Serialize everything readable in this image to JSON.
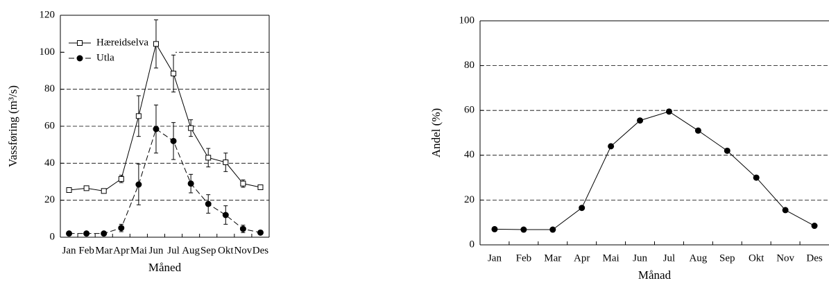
{
  "chart_data": [
    {
      "type": "line",
      "x_label": "Måned",
      "y_label": "Vassføring (m³/s)",
      "categories": [
        "Jan",
        "Feb",
        "Mar",
        "Apr",
        "Mai",
        "Jun",
        "Jul",
        "Aug",
        "Sep",
        "Okt",
        "Nov",
        "Des"
      ],
      "series": [
        {
          "name": "Hæreidselva",
          "color": "#000000",
          "marker": "square-open",
          "linestyle": "solid",
          "values": [
            25.5,
            26.5,
            25,
            31.5,
            65.5,
            104.5,
            88.5,
            59,
            43,
            40.5,
            29,
            27
          ],
          "errors": [
            0,
            0,
            0,
            2,
            11,
            13,
            10,
            4.5,
            5,
            5,
            2,
            0
          ]
        },
        {
          "name": "Utla",
          "color": "#000000",
          "marker": "circle-filled",
          "linestyle": "dashed",
          "values": [
            2,
            2,
            2,
            5,
            28.5,
            58.5,
            52,
            29,
            18,
            12,
            4.5,
            2.5
          ],
          "errors": [
            0,
            0,
            0,
            2,
            11,
            13,
            10,
            5,
            5,
            5,
            2,
            0
          ]
        }
      ],
      "ylim": [
        0,
        120
      ],
      "yticks": [
        0,
        20,
        40,
        60,
        80,
        100,
        120
      ],
      "grid": true,
      "legend": "upper left"
    },
    {
      "type": "line",
      "x_label": "Månad",
      "y_label": "Andel (%)",
      "categories": [
        "Jan",
        "Feb",
        "Mar",
        "Apr",
        "Mai",
        "Jun",
        "Jul",
        "Aug",
        "Sep",
        "Okt",
        "Nov",
        "Des"
      ],
      "series": [
        {
          "color": "#000000",
          "marker": "circle-filled",
          "linestyle": "solid",
          "values": [
            7,
            6.8,
            6.8,
            16.5,
            44,
            55.5,
            59.5,
            51,
            42,
            30,
            15.5,
            8.5
          ]
        }
      ],
      "ylim": [
        0,
        100
      ],
      "yticks": [
        0,
        20,
        40,
        60,
        80,
        100
      ],
      "grid": true
    }
  ]
}
